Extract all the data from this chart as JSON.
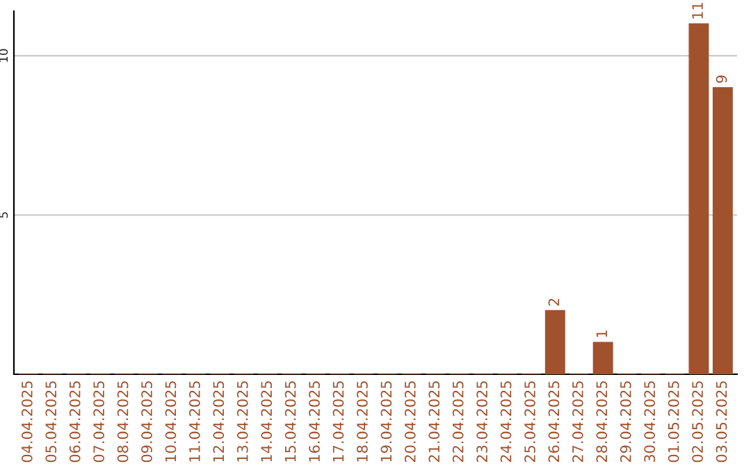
{
  "chart_data": {
    "type": "bar",
    "categories": [
      "04.04.2025",
      "05.04.2025",
      "06.04.2025",
      "07.04.2025",
      "08.04.2025",
      "09.04.2025",
      "10.04.2025",
      "11.04.2025",
      "12.04.2025",
      "13.04.2025",
      "14.04.2025",
      "15.04.2025",
      "16.04.2025",
      "17.04.2025",
      "18.04.2025",
      "19.04.2025",
      "20.04.2025",
      "21.04.2025",
      "22.04.2025",
      "23.04.2025",
      "24.04.2025",
      "25.04.2025",
      "26.04.2025",
      "27.04.2025",
      "28.04.2025",
      "29.04.2025",
      "30.04.2025",
      "01.05.2025",
      "02.05.2025",
      "03.05.2025"
    ],
    "values": [
      0,
      0,
      0,
      0,
      0,
      0,
      0,
      0,
      0,
      0,
      0,
      0,
      0,
      0,
      0,
      0,
      0,
      0,
      0,
      0,
      0,
      0,
      2,
      0,
      1,
      0,
      0,
      0,
      11,
      9
    ],
    "value_labels": [
      null,
      null,
      null,
      null,
      null,
      null,
      null,
      null,
      null,
      null,
      null,
      null,
      null,
      null,
      null,
      null,
      null,
      null,
      null,
      null,
      null,
      null,
      "2",
      null,
      "1",
      null,
      null,
      null,
      "11",
      "9"
    ],
    "color": "#a0522d",
    "ylim": [
      0,
      11.4
    ],
    "yticks": [
      5,
      10
    ],
    "grid": "y"
  }
}
